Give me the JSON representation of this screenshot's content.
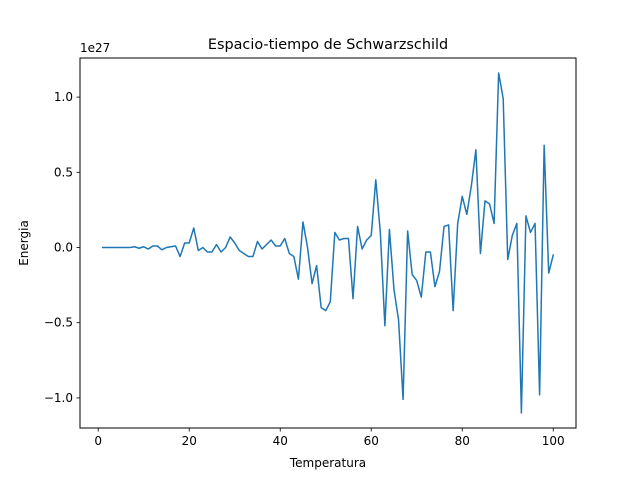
{
  "chart_data": {
    "type": "line",
    "title": "Espacio-tiempo de Schwarzschild",
    "xlabel": "Temperatura",
    "ylabel": "Energia",
    "y_offset_label": "1e27",
    "xlim": [
      -4.0,
      105.0
    ],
    "ylim": [
      -1.2,
      1.26
    ],
    "x_ticks": [
      0,
      20,
      40,
      60,
      80,
      100
    ],
    "x_tick_labels": [
      "0",
      "20",
      "40",
      "60",
      "80",
      "100"
    ],
    "y_ticks": [
      -1.0,
      -0.5,
      0.0,
      0.5,
      1.0
    ],
    "y_tick_labels": [
      "−1.0",
      "−0.5",
      "0.0",
      "0.5",
      "1.0"
    ],
    "grid": false,
    "legend": "none",
    "series": [
      {
        "color": "#1f77b4",
        "x": [
          1,
          2,
          3,
          4,
          5,
          6,
          7,
          8,
          9,
          10,
          11,
          12,
          13,
          14,
          15,
          16,
          17,
          18,
          19,
          20,
          21,
          22,
          23,
          24,
          25,
          26,
          27,
          28,
          29,
          30,
          31,
          32,
          33,
          34,
          35,
          36,
          37,
          38,
          39,
          40,
          41,
          42,
          43,
          44,
          45,
          46,
          47,
          48,
          49,
          50,
          51,
          52,
          53,
          54,
          55,
          56,
          57,
          58,
          59,
          60,
          61,
          62,
          63,
          64,
          65,
          66,
          67,
          68,
          69,
          70,
          71,
          72,
          73,
          74,
          75,
          76,
          77,
          78,
          79,
          80,
          81,
          82,
          83,
          84,
          85,
          86,
          87,
          88,
          89,
          90,
          91,
          92,
          93,
          94,
          95,
          96,
          97,
          98,
          99,
          100
        ],
        "y": [
          0.0,
          0.0,
          0.0,
          0.0,
          0.0,
          0.0,
          0.0,
          0.005,
          -0.005,
          0.005,
          -0.01,
          0.01,
          0.01,
          -0.015,
          0.0,
          0.005,
          0.01,
          -0.06,
          0.03,
          0.03,
          0.13,
          -0.02,
          0.0,
          -0.03,
          -0.03,
          0.02,
          -0.03,
          0.0,
          0.07,
          0.03,
          -0.02,
          -0.04,
          -0.06,
          -0.06,
          0.04,
          -0.01,
          0.02,
          0.05,
          0.01,
          0.01,
          0.06,
          -0.04,
          -0.06,
          -0.21,
          0.17,
          0.0,
          -0.24,
          -0.12,
          -0.4,
          -0.42,
          -0.36,
          0.1,
          0.05,
          0.06,
          0.06,
          -0.34,
          0.14,
          -0.01,
          0.05,
          0.08,
          0.45,
          0.1,
          -0.52,
          0.12,
          -0.28,
          -0.48,
          -1.01,
          0.11,
          -0.18,
          -0.22,
          -0.33,
          -0.03,
          -0.03,
          -0.26,
          -0.16,
          0.14,
          0.15,
          -0.42,
          0.16,
          0.34,
          0.22,
          0.41,
          0.65,
          -0.04,
          0.31,
          0.29,
          0.16,
          1.16,
          0.99,
          -0.08,
          0.08,
          0.16,
          -1.1,
          0.21,
          0.1,
          0.16,
          -0.98,
          0.68,
          -0.17,
          -0.05
        ]
      }
    ]
  }
}
